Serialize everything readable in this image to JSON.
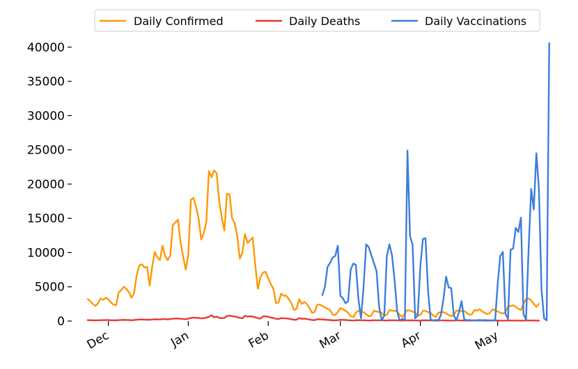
{
  "chart_data": {
    "type": "line",
    "title": "",
    "xlabel": "",
    "ylabel": "",
    "x_start": "2020-11-23",
    "x_end": "2021-05-20",
    "x_ticks": [
      {
        "label": "Dec",
        "date": "2020-12-01"
      },
      {
        "label": "Jan",
        "date": "2021-01-01"
      },
      {
        "label": "Feb",
        "date": "2021-02-01"
      },
      {
        "label": "Mar",
        "date": "2021-03-01"
      },
      {
        "label": "Apr",
        "date": "2021-04-01"
      },
      {
        "label": "May",
        "date": "2021-05-01"
      }
    ],
    "ylim": [
      0,
      41000
    ],
    "y_ticks": [
      0,
      5000,
      10000,
      15000,
      20000,
      25000,
      30000,
      35000,
      40000
    ],
    "legend_position": "top",
    "grid": false,
    "series": [
      {
        "name": "Daily Confirmed",
        "color": "#ff9800",
        "start_date": "2020-11-23",
        "values": [
          3200,
          2900,
          2500,
          2200,
          2600,
          3300,
          3100,
          3400,
          3200,
          2700,
          2400,
          2300,
          4200,
          4500,
          5000,
          4700,
          4200,
          3400,
          4100,
          6700,
          8100,
          8300,
          7800,
          7900,
          5200,
          8000,
          10100,
          9300,
          8900,
          11000,
          9500,
          8900,
          9600,
          14000,
          14400,
          14800,
          11500,
          9400,
          7500,
          9700,
          17700,
          18000,
          16700,
          15000,
          11900,
          12800,
          14500,
          21900,
          21000,
          22000,
          21600,
          17500,
          15100,
          13200,
          18600,
          18500,
          15000,
          14300,
          12400,
          9100,
          10000,
          12700,
          11400,
          11800,
          12200,
          8100,
          4700,
          6400,
          7100,
          7200,
          6200,
          5400,
          4700,
          2600,
          2700,
          4000,
          3700,
          3700,
          3200,
          2600,
          1600,
          1800,
          3200,
          2500,
          2800,
          2500,
          1900,
          1200,
          1300,
          2400,
          2400,
          2200,
          2000,
          1800,
          1600,
          900,
          900,
          1300,
          1900,
          1700,
          1500,
          1200,
          700,
          600,
          1200,
          1500,
          1300,
          1300,
          1000,
          700,
          800,
          1500,
          1400,
          1300,
          1200,
          800,
          900,
          1600,
          1500,
          1500,
          1400,
          900,
          600,
          1100,
          1600,
          1500,
          1400,
          1200,
          800,
          900,
          1500,
          1500,
          1300,
          1200,
          800,
          600,
          1200,
          1300,
          1300,
          1100,
          900,
          700,
          900,
          1500,
          1500,
          1400,
          1500,
          1200,
          900,
          1000,
          1600,
          1500,
          1700,
          1400,
          1200,
          1000,
          1200,
          1700,
          1600,
          1400,
          1200,
          1100,
          1300,
          2100,
          2200,
          2300,
          2100,
          1800,
          1600,
          2500,
          3200,
          3300,
          3000,
          2500,
          2100,
          2500
        ]
      },
      {
        "name": "Daily Deaths",
        "color": "#e53935",
        "start_date": "2020-11-23",
        "values": [
          130,
          120,
          110,
          100,
          110,
          130,
          130,
          140,
          140,
          120,
          110,
          100,
          130,
          160,
          170,
          160,
          140,
          120,
          140,
          190,
          220,
          230,
          210,
          200,
          180,
          220,
          260,
          250,
          230,
          280,
          280,
          250,
          280,
          340,
          380,
          370,
          330,
          290,
          280,
          340,
          460,
          500,
          480,
          450,
          400,
          420,
          500,
          620,
          850,
          550,
          650,
          480,
          430,
          450,
          740,
          780,
          720,
          650,
          580,
          460,
          400,
          770,
          650,
          700,
          640,
          550,
          420,
          360,
          680,
          690,
          620,
          520,
          450,
          330,
          280,
          430,
          400,
          390,
          330,
          270,
          180,
          200,
          430,
          320,
          340,
          290,
          220,
          150,
          140,
          250,
          260,
          230,
          200,
          170,
          150,
          100,
          110,
          130,
          180,
          170,
          150,
          120,
          90,
          80,
          110,
          130,
          120,
          110,
          90,
          80,
          80,
          120,
          110,
          110,
          100,
          80,
          80,
          120,
          110,
          110,
          100,
          80,
          70,
          90,
          110,
          100,
          100,
          90,
          70,
          70,
          100,
          100,
          90,
          90,
          70,
          60,
          80,
          90,
          90,
          80,
          70,
          60,
          70,
          90,
          90,
          80,
          80,
          70,
          60,
          70,
          90,
          80,
          80,
          70,
          60,
          60,
          70,
          80,
          80,
          70,
          70,
          60,
          60,
          80,
          80,
          70,
          70,
          60,
          60,
          70,
          90,
          80,
          80,
          70,
          60,
          70
        ]
      },
      {
        "name": "Daily Vaccinations",
        "color": "#3b7ddd",
        "start_date": "2021-02-22",
        "values": [
          3800,
          5000,
          7900,
          8500,
          9300,
          9500,
          11000,
          3700,
          3300,
          2600,
          2900,
          7500,
          8400,
          8200,
          3200,
          400,
          5000,
          11200,
          10800,
          9600,
          8500,
          7300,
          2100,
          100,
          800,
          9500,
          11200,
          9600,
          6000,
          1400,
          100,
          300,
          200,
          24900,
          12400,
          11100,
          400,
          800,
          8000,
          12000,
          12100,
          4400,
          200,
          100,
          150,
          100,
          900,
          3300,
          6500,
          4900,
          4800,
          800,
          100,
          1300,
          2900,
          300,
          100,
          150,
          100,
          100,
          100,
          150,
          100,
          150,
          100,
          100,
          100,
          100,
          5500,
          9500,
          10100,
          1100,
          300,
          10400,
          10600,
          13600,
          13000,
          15100,
          1000,
          200,
          10600,
          19300,
          16300,
          24500,
          19300,
          4600,
          400,
          100,
          40600
        ]
      }
    ]
  }
}
